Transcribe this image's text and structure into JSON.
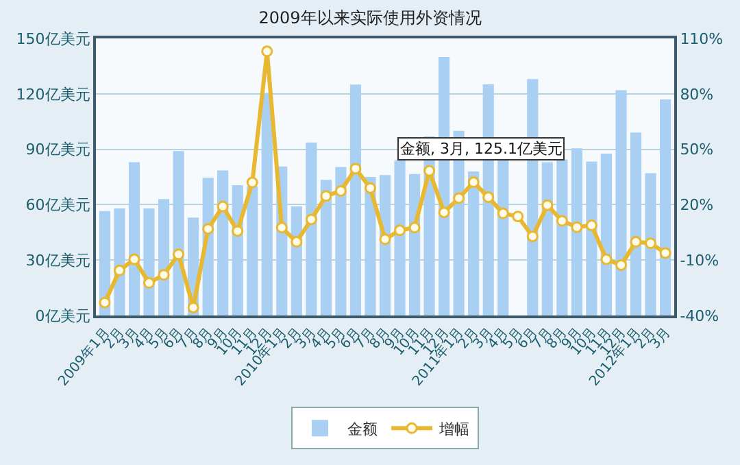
{
  "chart_data": {
    "type": "bar",
    "title": "2009年以来实际使用外资情况",
    "categories": [
      "2009年1月",
      "2月",
      "3月",
      "4月",
      "5月",
      "6月",
      "7月",
      "8月",
      "9月",
      "10月",
      "11月",
      "12月",
      "2010年1月",
      "2月",
      "3月",
      "4月",
      "5月",
      "6月",
      "7月",
      "8月",
      "9月",
      "10月",
      "11月",
      "12月",
      "2011年1月",
      "2月",
      "3月",
      "4月",
      "5月",
      "6月",
      "7月",
      "8月",
      "9月",
      "10月",
      "11月",
      "12月",
      "2012年1月",
      "2月",
      "3月"
    ],
    "series": [
      {
        "name": "金额",
        "color": "#a9cff2",
        "values": [
          56.5,
          58,
          83,
          58,
          63,
          89,
          53,
          74.6,
          78.5,
          70.5,
          70,
          120.5,
          80.7,
          59,
          93.7,
          73.4,
          80.4,
          125,
          75,
          76,
          84,
          76.6,
          97,
          140,
          100,
          78,
          125.1,
          85,
          null,
          128,
          83,
          84.5,
          90.5,
          83.4,
          87.6,
          122,
          99,
          77,
          117
        ]
      },
      {
        "name": "增幅",
        "type": "line",
        "axis": "y2",
        "color": "#e8b830",
        "marker": "circle",
        "values": [
          -33,
          -15.6,
          -9.6,
          -22.4,
          -18,
          -6.9,
          -35.7,
          6.9,
          19,
          5.7,
          32,
          103,
          7.6,
          -0.1,
          12,
          24.7,
          27.4,
          39.5,
          29,
          1.3,
          6.1,
          7.6,
          38.3,
          15.8,
          23.5,
          32.2,
          24,
          15.3,
          13.6,
          2.8,
          19.7,
          11.2,
          7.8,
          8.8,
          -9.6,
          -12.7,
          -0.1,
          -0.9,
          -6.2
        ]
      }
    ],
    "ylim": [
      0,
      150
    ],
    "yticks": [
      {
        "value": 0,
        "label": "0亿美元"
      },
      {
        "value": 30,
        "label": "30亿美元"
      },
      {
        "value": 60,
        "label": "60亿美元"
      },
      {
        "value": 90,
        "label": "90亿美元"
      },
      {
        "value": 120,
        "label": "120亿美元"
      },
      {
        "value": 150,
        "label": "150亿美元"
      }
    ],
    "y2lim": [
      -40,
      110
    ],
    "y2ticks": [
      {
        "value": -40,
        "label": "-40%"
      },
      {
        "value": -10,
        "label": "-10%"
      },
      {
        "value": 20,
        "label": "20%"
      },
      {
        "value": 50,
        "label": "50%"
      },
      {
        "value": 80,
        "label": "80%"
      },
      {
        "value": 110,
        "label": "110%"
      }
    ],
    "grid": "y",
    "legend": "bottom",
    "annotations": [
      "金额, 3月, 125.1亿美元"
    ]
  }
}
